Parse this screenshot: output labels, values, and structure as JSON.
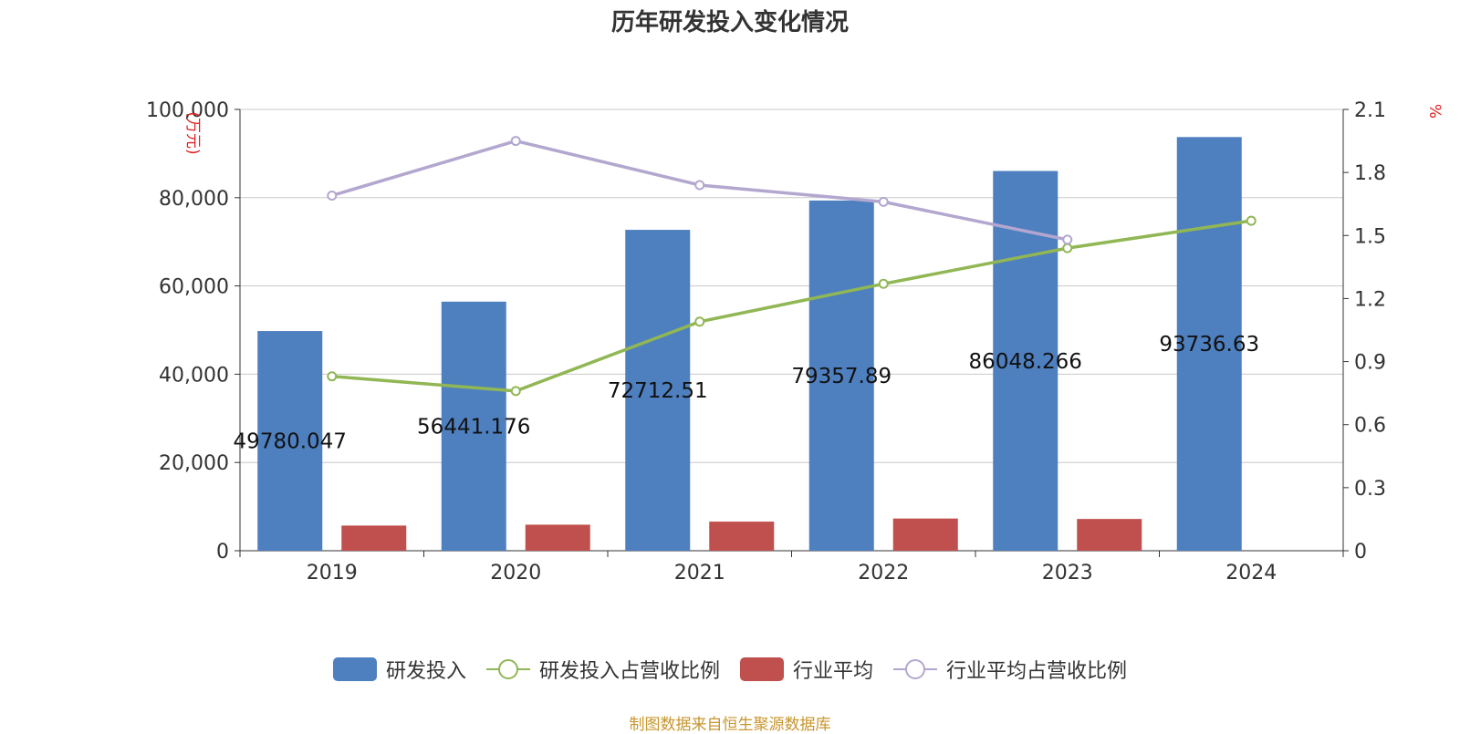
{
  "chart_data": {
    "type": "bar",
    "title": "历年研发投入变化情况",
    "categories": [
      "2019",
      "2020",
      "2021",
      "2022",
      "2023",
      "2024"
    ],
    "y_left": {
      "unit_label": "(万元)",
      "ylim": [
        0,
        100000
      ],
      "ticks": [
        "0",
        "20,000",
        "40,000",
        "60,000",
        "80,000",
        "100,000"
      ]
    },
    "y_right": {
      "unit_label": "%",
      "ylim": [
        0,
        2.1
      ],
      "ticks": [
        "0",
        "0.3",
        "0.6",
        "0.9",
        "1.2",
        "1.5",
        "1.8",
        "2.1"
      ]
    },
    "grid": true,
    "legend_position": "bottom",
    "series": [
      {
        "name": "研发投入",
        "type": "bar",
        "axis": "left",
        "color": "#4e7fbf",
        "values": [
          49780.047,
          56441.176,
          72712.51,
          79357.89,
          86048.266,
          93736.63
        ],
        "data_labels": [
          "49780.047",
          "56441.176",
          "72712.51",
          "79357.89",
          "86048.266",
          "93736.63"
        ]
      },
      {
        "name": "研发投入占营收比例",
        "type": "line",
        "axis": "right",
        "color": "#91b755",
        "values": [
          0.83,
          0.76,
          1.09,
          1.27,
          1.44,
          1.57
        ]
      },
      {
        "name": "行业平均",
        "type": "bar",
        "axis": "left",
        "color": "#c0504d",
        "values": [
          5700,
          5900,
          6600,
          7300,
          7200,
          null
        ]
      },
      {
        "name": "行业平均占营收比例",
        "type": "line",
        "axis": "right",
        "color": "#b3a7cf",
        "values": [
          1.69,
          1.95,
          1.74,
          1.66,
          1.48,
          null
        ]
      }
    ]
  },
  "source_note": "制图数据来自恒生聚源数据库"
}
